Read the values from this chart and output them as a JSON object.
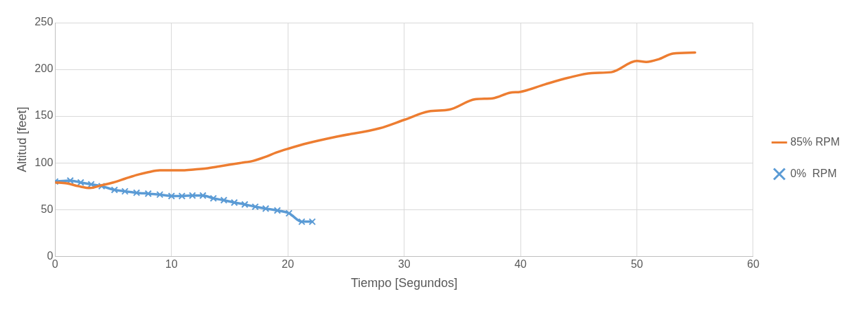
{
  "chart_data": {
    "type": "line",
    "xlabel": "Tiempo [Segundos]",
    "ylabel": "Altitud [feet]",
    "xlim": [
      0,
      60
    ],
    "xticks": [
      0,
      10,
      20,
      30,
      40,
      50,
      60
    ],
    "ylim": [
      0,
      250
    ],
    "yticks": [
      0,
      50,
      100,
      150,
      200,
      250
    ],
    "grid": true,
    "legend": "right",
    "series": [
      {
        "name": "85% RPM",
        "color": "#ed7d31",
        "marker": "none",
        "x": [
          0,
          1,
          2,
          3,
          4,
          5,
          6,
          7,
          8,
          9,
          10,
          11,
          12,
          13,
          14,
          15,
          16,
          17,
          18,
          19,
          20,
          21.7,
          24.2,
          27.9,
          30,
          32.1,
          33.9,
          36.1,
          37.6,
          39.1,
          40,
          42.1,
          44.1,
          46.1,
          47.8,
          50,
          50.8,
          51.9,
          53.1,
          55
        ],
        "values": [
          79,
          78,
          75,
          73,
          76,
          79,
          83,
          87,
          90,
          92,
          92,
          92,
          93,
          94,
          96,
          98,
          100,
          102,
          106,
          111,
          115,
          121,
          128,
          137,
          146,
          155,
          157,
          168,
          169,
          175,
          176,
          184,
          191,
          196,
          197,
          209,
          208,
          211,
          217,
          218
        ]
      },
      {
        "name": "0%  RPM",
        "color": "#5b9bd5",
        "marker": "cross",
        "x": [
          0,
          1.3,
          2.2,
          3.1,
          4,
          5.1,
          6,
          7,
          8,
          9,
          10,
          10.9,
          11.8,
          12.7,
          13.6,
          14.5,
          15.4,
          16.3,
          17.2,
          18.1,
          19.1,
          20.1,
          21.2,
          22.1
        ],
        "values": [
          80,
          81,
          79,
          77,
          75,
          71,
          69.5,
          68,
          67,
          66,
          64.5,
          64.5,
          65,
          65,
          62,
          60,
          57.5,
          55.5,
          53,
          51,
          49,
          46,
          37,
          37
        ]
      }
    ]
  }
}
